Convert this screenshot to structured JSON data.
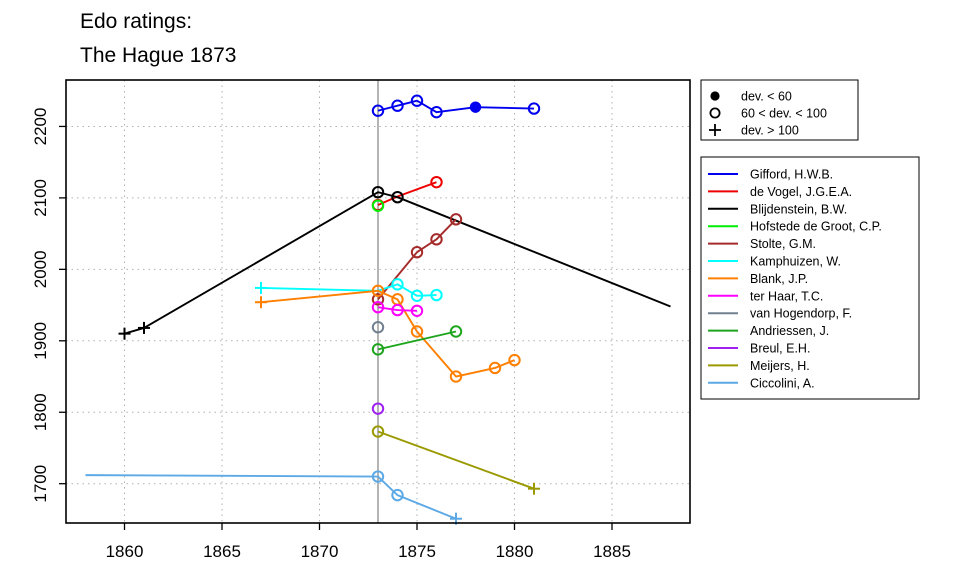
{
  "chart_data": {
    "type": "line",
    "title": [
      "Edo ratings:",
      "The Hague 1873"
    ],
    "xlabel": "",
    "ylabel": "",
    "xlim": [
      1857,
      1889
    ],
    "ylim": [
      1645,
      2265
    ],
    "x_ticks": [
      1860,
      1865,
      1870,
      1875,
      1880,
      1885
    ],
    "y_ticks": [
      1700,
      1800,
      1900,
      2000,
      2100,
      2200
    ],
    "grid": true,
    "reference_line_x": 1873,
    "legend_placement": "right",
    "marker_legend": [
      {
        "marker": "filled",
        "label": "dev. < 60"
      },
      {
        "marker": "open",
        "label": "60 < dev. < 100"
      },
      {
        "marker": "plus",
        "label": "dev. > 100"
      }
    ],
    "series": [
      {
        "name": "Gifford, H.W.B.",
        "color": "#0000ee",
        "points": [
          [
            1873,
            2222,
            "open"
          ],
          [
            1874,
            2229,
            "open"
          ],
          [
            1875,
            2236,
            "open"
          ],
          [
            1876,
            2220,
            "open"
          ],
          [
            1878,
            2227,
            "filled"
          ],
          [
            1881,
            2225,
            "open"
          ]
        ]
      },
      {
        "name": "de Vogel, J.G.E.A.",
        "color": "#ee0000",
        "points": [
          [
            1873,
            2090,
            "open"
          ],
          [
            1874,
            2102,
            "none"
          ],
          [
            1876,
            2122,
            "open"
          ]
        ]
      },
      {
        "name": "Blijdenstein, B.W.",
        "color": "#000000",
        "points": [
          [
            1860,
            1910,
            "plus"
          ],
          [
            1861,
            1918,
            "plus"
          ],
          [
            1873,
            2108,
            "open"
          ],
          [
            1874,
            2101,
            "open"
          ],
          [
            1888,
            1948,
            "none"
          ]
        ]
      },
      {
        "name": "Hofstede de Groot, C.P.",
        "color": "#00ee00",
        "points": [
          [
            1873,
            2089,
            "open"
          ]
        ]
      },
      {
        "name": "Stolte, G.M.",
        "color": "#a52a2a",
        "points": [
          [
            1873,
            1958,
            "open"
          ],
          [
            1875,
            2024,
            "open"
          ],
          [
            1876,
            2042,
            "open"
          ],
          [
            1877,
            2070,
            "open"
          ]
        ]
      },
      {
        "name": "Kamphuizen, W.",
        "color": "#00ffff",
        "points": [
          [
            1867,
            1974,
            "plus"
          ],
          [
            1873,
            1970,
            "none"
          ],
          [
            1874,
            1979,
            "open"
          ],
          [
            1875,
            1963,
            "open"
          ],
          [
            1876,
            1964,
            "open"
          ]
        ]
      },
      {
        "name": "Blank, J.P.",
        "color": "#ff7f00",
        "points": [
          [
            1867,
            1954,
            "plus"
          ],
          [
            1873,
            1970,
            "open"
          ],
          [
            1874,
            1958,
            "open"
          ],
          [
            1875,
            1913,
            "open"
          ],
          [
            1877,
            1850,
            "open"
          ],
          [
            1879,
            1862,
            "open"
          ],
          [
            1880,
            1873,
            "open"
          ]
        ]
      },
      {
        "name": "ter Haar, T.C.",
        "color": "#ff00ff",
        "points": [
          [
            1873,
            1947,
            "open"
          ],
          [
            1874,
            1943,
            "open"
          ],
          [
            1875,
            1942,
            "open"
          ]
        ]
      },
      {
        "name": "van Hogendorp, F.",
        "color": "#708090",
        "points": [
          [
            1873,
            1919,
            "open"
          ]
        ]
      },
      {
        "name": "Andriessen, J.",
        "color": "#1ea51e",
        "points": [
          [
            1873,
            1888,
            "open"
          ],
          [
            1877,
            1913,
            "open"
          ]
        ]
      },
      {
        "name": "Breul, E.H.",
        "color": "#a020f0",
        "points": [
          [
            1873,
            1805,
            "open"
          ]
        ]
      },
      {
        "name": "Meijers, H.",
        "color": "#9a9a00",
        "points": [
          [
            1873,
            1773,
            "open"
          ],
          [
            1881,
            1693,
            "plus"
          ]
        ]
      },
      {
        "name": "Ciccolini, A.",
        "color": "#5ca9e6",
        "points": [
          [
            1858,
            1712,
            "none"
          ],
          [
            1873,
            1710,
            "open"
          ],
          [
            1874,
            1684,
            "open"
          ],
          [
            1877,
            1651,
            "plus"
          ]
        ]
      }
    ]
  }
}
